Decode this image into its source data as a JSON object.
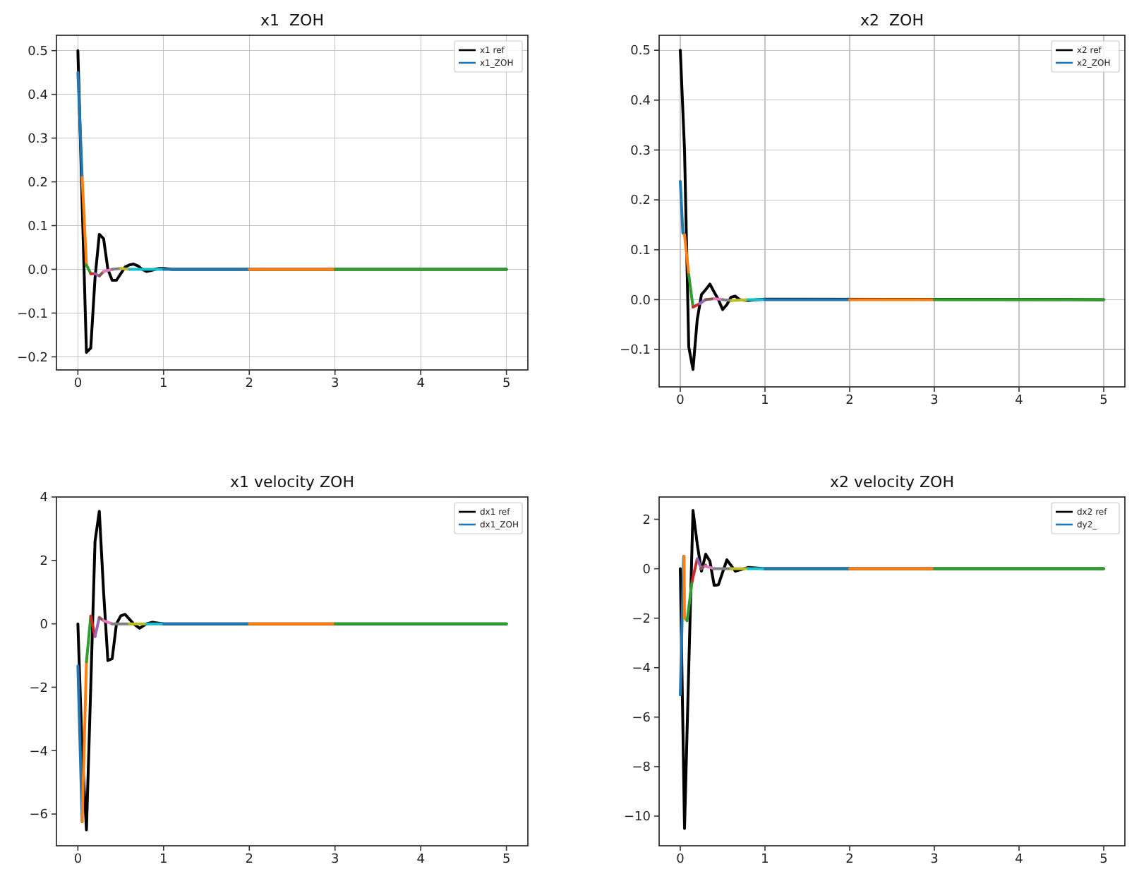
{
  "chart_data": [
    {
      "type": "line",
      "title": "x1  ZOH",
      "xlim": [
        -0.25,
        5.25
      ],
      "xticks": [
        0,
        1,
        2,
        3,
        4,
        5
      ],
      "ylim": [
        -0.23,
        0.535
      ],
      "yticks": [
        {
          "value": -0.2,
          "label": "−0.2"
        },
        {
          "value": -0.1,
          "label": "−0.1"
        },
        {
          "value": 0,
          "label": "0.0"
        },
        {
          "value": 0.1,
          "label": "0.1"
        },
        {
          "value": 0.2,
          "label": "0.2"
        },
        {
          "value": 0.3,
          "label": "0.3"
        },
        {
          "value": 0.4,
          "label": "0.4"
        },
        {
          "value": 0.5,
          "label": "0.5"
        }
      ],
      "grid": true,
      "legend": "top right",
      "series": [
        {
          "name": "x1 ref",
          "color": "#000000",
          "x": [
            0,
            0.05,
            0.1,
            0.15,
            0.2,
            0.25,
            0.3,
            0.35,
            0.4,
            0.45,
            0.5,
            0.55,
            0.6,
            0.65,
            0.7,
            0.75,
            0.8,
            0.85,
            0.9,
            0.95,
            1,
            1.1,
            5
          ],
          "values": [
            0.5,
            0.15,
            -0.19,
            -0.18,
            -0.02,
            0.08,
            0.07,
            0.0,
            -0.025,
            -0.025,
            -0.01,
            0.005,
            0.01,
            0.012,
            0.008,
            0.0,
            -0.005,
            -0.003,
            0.0,
            0.002,
            0.002,
            0.0,
            0.0
          ]
        },
        {
          "name": "x1_ZOH",
          "color": "#1f77b4",
          "x": [
            0,
            0.05
          ],
          "values": [
            0.45,
            0.21
          ]
        },
        {
          "color": "#ff7f0e",
          "x": [
            0.05,
            0.1
          ],
          "values": [
            0.21,
            0.01
          ]
        },
        {
          "color": "#2ca02c",
          "x": [
            0.1,
            0.15
          ],
          "values": [
            0.01,
            -0.01
          ]
        },
        {
          "color": "#d62728",
          "x": [
            0.15,
            0.2
          ],
          "values": [
            -0.01,
            -0.01
          ]
        },
        {
          "color": "#9467bd",
          "x": [
            0.2,
            0.25
          ],
          "values": [
            -0.01,
            -0.015
          ]
        },
        {
          "color": "#8c564b",
          "x": [
            0.25,
            0.3
          ],
          "values": [
            -0.015,
            -0.005
          ]
        },
        {
          "color": "#e377c2",
          "x": [
            0.3,
            0.4
          ],
          "values": [
            -0.005,
            0.0
          ]
        },
        {
          "color": "#7f7f7f",
          "x": [
            0.4,
            0.5
          ],
          "values": [
            0.0,
            0.002
          ]
        },
        {
          "color": "#bcbd22",
          "x": [
            0.5,
            0.6
          ],
          "values": [
            0.002,
            0.0
          ]
        },
        {
          "color": "#17becf",
          "x": [
            0.6,
            1
          ],
          "values": [
            0.0,
            0.0
          ]
        },
        {
          "color": "#1f77b4",
          "x": [
            1,
            2
          ],
          "values": [
            0.0,
            0.0
          ]
        },
        {
          "color": "#ff7f0e",
          "x": [
            2,
            3
          ],
          "values": [
            0.0,
            0.0
          ]
        },
        {
          "color": "#2ca02c",
          "x": [
            3,
            5
          ],
          "values": [
            0.0,
            0.0
          ]
        }
      ]
    },
    {
      "type": "line",
      "title": "x2  ZOH",
      "xlim": [
        -0.25,
        5.25
      ],
      "xticks": [
        0,
        1,
        2,
        3,
        4,
        5
      ],
      "ylim": [
        -0.175,
        0.53
      ],
      "yticks": [
        {
          "value": -0.1,
          "label": "−0.1"
        },
        {
          "value": 0,
          "label": "0.0"
        },
        {
          "value": 0.1,
          "label": "0.1"
        },
        {
          "value": 0.2,
          "label": "0.2"
        },
        {
          "value": 0.3,
          "label": "0.3"
        },
        {
          "value": 0.4,
          "label": "0.4"
        },
        {
          "value": 0.5,
          "label": "0.5"
        }
      ],
      "grid": true,
      "legend": "top right",
      "series": [
        {
          "name": "x2 ref",
          "color": "#000000",
          "x": [
            0,
            0.05,
            0.1,
            0.15,
            0.2,
            0.25,
            0.3,
            0.35,
            0.4,
            0.45,
            0.5,
            0.55,
            0.6,
            0.65,
            0.7,
            0.8,
            0.9,
            1,
            5
          ],
          "values": [
            0.5,
            0.3,
            -0.095,
            -0.14,
            -0.04,
            0.01,
            0.02,
            0.031,
            0.015,
            0.0,
            -0.02,
            -0.01,
            0.005,
            0.007,
            0.0,
            -0.002,
            0.0,
            0.001,
            0.0
          ]
        },
        {
          "name": "x2_ZOH",
          "color": "#1f77b4",
          "x": [
            0,
            0.03,
            0.05
          ],
          "values": [
            0.237,
            0.134,
            0.13
          ]
        },
        {
          "color": "#ff7f0e",
          "x": [
            0.05,
            0.1
          ],
          "values": [
            0.13,
            0.05
          ]
        },
        {
          "color": "#2ca02c",
          "x": [
            0.1,
            0.15
          ],
          "values": [
            0.05,
            -0.015
          ]
        },
        {
          "color": "#d62728",
          "x": [
            0.15,
            0.23
          ],
          "values": [
            -0.015,
            -0.008
          ]
        },
        {
          "color": "#9467bd",
          "x": [
            0.23,
            0.3
          ],
          "values": [
            -0.008,
            0.0
          ]
        },
        {
          "color": "#8c564b",
          "x": [
            0.3,
            0.4
          ],
          "values": [
            0.0,
            0.002
          ]
        },
        {
          "color": "#e377c2",
          "x": [
            0.4,
            0.5
          ],
          "values": [
            0.002,
            0.0
          ]
        },
        {
          "color": "#7f7f7f",
          "x": [
            0.5,
            0.6
          ],
          "values": [
            0.0,
            -0.002
          ]
        },
        {
          "color": "#bcbd22",
          "x": [
            0.6,
            0.8
          ],
          "values": [
            -0.002,
            0.0
          ]
        },
        {
          "color": "#17becf",
          "x": [
            0.8,
            1
          ],
          "values": [
            0.0,
            0.0
          ]
        },
        {
          "color": "#1f77b4",
          "x": [
            1,
            2
          ],
          "values": [
            0.0,
            0.0
          ]
        },
        {
          "color": "#ff7f0e",
          "x": [
            2,
            3
          ],
          "values": [
            0.0,
            0.0
          ]
        },
        {
          "color": "#2ca02c",
          "x": [
            3,
            5
          ],
          "values": [
            0.0,
            0.0
          ]
        }
      ]
    },
    {
      "type": "line",
      "title": "x1 velocity ZOH",
      "xlim": [
        -0.25,
        5.25
      ],
      "xticks": [
        0,
        1,
        2,
        3,
        4,
        5
      ],
      "ylim": [
        -7.0,
        4.0
      ],
      "yticks": [
        {
          "value": -6,
          "label": "−6"
        },
        {
          "value": -4,
          "label": "−4"
        },
        {
          "value": -2,
          "label": "−2"
        },
        0,
        2,
        4
      ],
      "legend": "top right",
      "series": [
        {
          "name": "dx1 ref",
          "color": "#000000",
          "x": [
            0,
            0.05,
            0.1,
            0.15,
            0.2,
            0.25,
            0.3,
            0.35,
            0.4,
            0.45,
            0.5,
            0.55,
            0.6,
            0.65,
            0.72,
            0.8,
            0.87,
            1,
            5
          ],
          "values": [
            0,
            -4.0,
            -6.5,
            -2.0,
            2.6,
            3.55,
            1.0,
            -1.16,
            -1.1,
            0.0,
            0.25,
            0.3,
            0.15,
            0.0,
            -0.14,
            0.0,
            0.05,
            0.0,
            0.0
          ]
        },
        {
          "name": "dx1_ZOH",
          "color": "#1f77b4",
          "x": [
            0,
            0.05
          ],
          "values": [
            -1.33,
            -6.25
          ]
        },
        {
          "color": "#ff7f0e",
          "x": [
            0.05,
            0.1
          ],
          "values": [
            -6.25,
            -1.2
          ]
        },
        {
          "color": "#2ca02c",
          "x": [
            0.1,
            0.15
          ],
          "values": [
            -1.2,
            0.24
          ]
        },
        {
          "color": "#d62728",
          "x": [
            0.15,
            0.2
          ],
          "values": [
            0.24,
            -0.4
          ]
        },
        {
          "color": "#9467bd",
          "x": [
            0.2,
            0.25
          ],
          "values": [
            -0.4,
            0.2
          ]
        },
        {
          "color": "#8c564b",
          "x": [
            0.25,
            0.3
          ],
          "values": [
            0.2,
            0.1
          ]
        },
        {
          "color": "#e377c2",
          "x": [
            0.3,
            0.4
          ],
          "values": [
            0.1,
            0.0
          ]
        },
        {
          "color": "#7f7f7f",
          "x": [
            0.4,
            0.6
          ],
          "values": [
            0.0,
            0.0
          ]
        },
        {
          "color": "#bcbd22",
          "x": [
            0.6,
            0.8
          ],
          "values": [
            0.0,
            0.0
          ]
        },
        {
          "color": "#17becf",
          "x": [
            0.8,
            1
          ],
          "values": [
            0.0,
            0.0
          ]
        },
        {
          "color": "#1f77b4",
          "x": [
            1,
            2
          ],
          "values": [
            0.0,
            0.0
          ]
        },
        {
          "color": "#ff7f0e",
          "x": [
            2,
            3
          ],
          "values": [
            0.0,
            0.0
          ]
        },
        {
          "color": "#2ca02c",
          "x": [
            3,
            5
          ],
          "values": [
            0.0,
            0.0
          ]
        }
      ]
    },
    {
      "type": "line",
      "title": "x2 velocity ZOH",
      "xlim": [
        -0.25,
        5.25
      ],
      "xticks": [
        0,
        1,
        2,
        3,
        4,
        5
      ],
      "ylim": [
        -11.2,
        2.9
      ],
      "yticks": [
        {
          "value": -10,
          "label": "−10"
        },
        {
          "value": -8,
          "label": "−8"
        },
        {
          "value": -6,
          "label": "−6"
        },
        {
          "value": -4,
          "label": "−4"
        },
        {
          "value": -2,
          "label": "−2"
        },
        0,
        2
      ],
      "legend": "top right",
      "series": [
        {
          "name": "dx2 ref",
          "color": "#000000",
          "x": [
            0,
            0.05,
            0.1,
            0.15,
            0.2,
            0.25,
            0.3,
            0.35,
            0.4,
            0.45,
            0.55,
            0.65,
            0.75,
            0.8,
            1,
            5
          ],
          "values": [
            0,
            -10.5,
            -4.0,
            2.36,
            1.0,
            -0.1,
            0.59,
            0.3,
            -0.67,
            -0.65,
            0.36,
            -0.1,
            0.0,
            0.05,
            0.0,
            0.0
          ]
        },
        {
          "name": "dy2_",
          "color": "#1f77b4",
          "x": [
            0,
            0.04
          ],
          "values": [
            -5.1,
            0.5
          ]
        },
        {
          "color": "#ff7f0e",
          "x": [
            0.045,
            0.05,
            0.08
          ],
          "values": [
            0.5,
            -2.0,
            -2.1
          ]
        },
        {
          "color": "#2ca02c",
          "x": [
            0.08,
            0.14
          ],
          "values": [
            -2.1,
            -0.5
          ]
        },
        {
          "color": "#d62728",
          "x": [
            0.14,
            0.2
          ],
          "values": [
            -0.5,
            0.4
          ]
        },
        {
          "color": "#9467bd",
          "x": [
            0.2,
            0.25
          ],
          "values": [
            0.4,
            0.0
          ]
        },
        {
          "color": "#8c564b",
          "x": [
            0.24,
            0.3
          ],
          "values": [
            0.0,
            0.15
          ]
        },
        {
          "color": "#e377c2",
          "x": [
            0.3,
            0.4
          ],
          "values": [
            0.1,
            0.0
          ]
        },
        {
          "color": "#7f7f7f",
          "x": [
            0.4,
            0.6
          ],
          "values": [
            0.0,
            0.0
          ]
        },
        {
          "color": "#bcbd22",
          "x": [
            0.6,
            0.8
          ],
          "values": [
            0.0,
            0.0
          ]
        },
        {
          "color": "#17becf",
          "x": [
            0.8,
            1
          ],
          "values": [
            0.0,
            0.0
          ]
        },
        {
          "color": "#1f77b4",
          "x": [
            1,
            2
          ],
          "values": [
            0.0,
            0.0
          ]
        },
        {
          "color": "#ff7f0e",
          "x": [
            2,
            3
          ],
          "values": [
            0.0,
            0.0
          ]
        },
        {
          "color": "#2ca02c",
          "x": [
            3,
            5
          ],
          "values": [
            0.0,
            0.0
          ]
        }
      ]
    }
  ]
}
